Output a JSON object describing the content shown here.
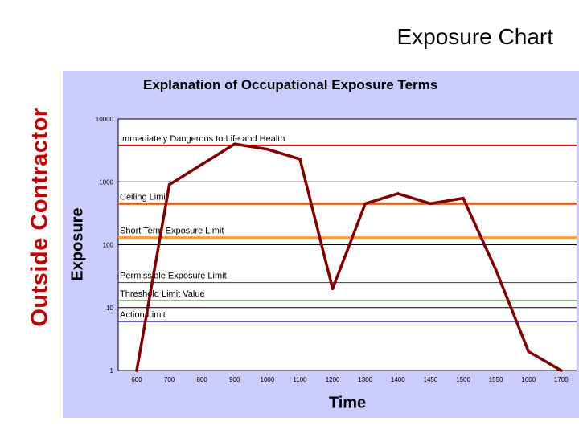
{
  "slide": {
    "title": "Exposure Chart",
    "side_title": "Outside Contractor"
  },
  "colors": {
    "panel_bg": "#ccccff",
    "plot_bg": "#ffffff",
    "series_line": "#800000",
    "side_title": "#c00000"
  },
  "chart_data": {
    "type": "line",
    "title": "Explanation of Occupational Exposure Terms",
    "xlabel": "Time",
    "ylabel": "Exposure",
    "y_scale": "log",
    "ylim": [
      1,
      10000
    ],
    "grid": true,
    "legend": "none",
    "categories": [
      "600",
      "700",
      "800",
      "900",
      "1000",
      "1100",
      "1200",
      "1300",
      "1400",
      "1450",
      "1500",
      "1550",
      "1600",
      "1700"
    ],
    "y_tick_labels": [
      "1",
      "10",
      "100",
      "1000",
      "10000"
    ],
    "y_ticks": [
      1,
      10,
      100,
      1000,
      10000
    ],
    "series": [
      {
        "values": [
          1,
          900,
          1900,
          4000,
          3300,
          2300,
          20,
          450,
          650,
          450,
          550,
          40,
          2,
          1
        ]
      }
    ],
    "reference_lines": [
      {
        "label": "Immediately Dangerous to Life and Health",
        "value": 3800,
        "color": "#cc0000",
        "width": 2
      },
      {
        "label": "Ceiling Limit",
        "value": 450,
        "color": "#cc6633",
        "width": 3
      },
      {
        "label": "Short Term Exposure Limit",
        "value": 130,
        "color": "#ff9933",
        "width": 3
      },
      {
        "label": "Permissible Exposure Limit",
        "value": 25,
        "color": "#006600",
        "width": 1
      },
      {
        "label": "Threshold Limit Value",
        "value": 13,
        "color": "#339933",
        "width": 1
      },
      {
        "label": "Action Limit",
        "value": 6,
        "color": "#000099",
        "width": 1
      }
    ]
  }
}
